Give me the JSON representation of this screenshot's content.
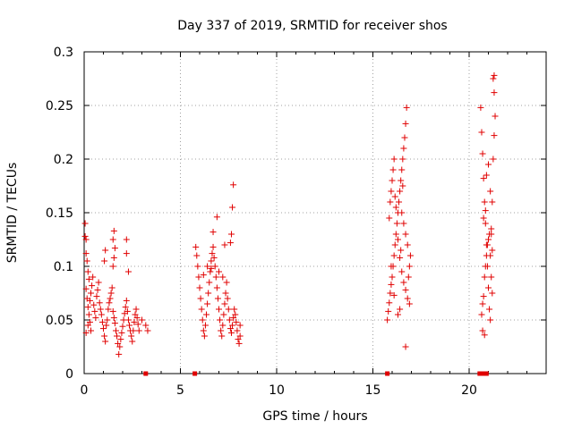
{
  "chart_data": {
    "type": "scatter",
    "title": "Day 337 of 2019, SRMTID for receiver shos",
    "xlabel": "GPS time / hours",
    "ylabel": "SRMTID / TECUs",
    "xlim": [
      0,
      24
    ],
    "ylim": [
      0,
      0.3
    ],
    "xticks": [
      0,
      5,
      10,
      15,
      20
    ],
    "xtick_labels": [
      "0",
      "5",
      "10",
      "15",
      "20"
    ],
    "yticks": [
      0,
      0.05,
      0.1,
      0.15,
      0.2,
      0.25,
      0.3
    ],
    "ytick_labels": [
      "0",
      "0.05",
      "0.1",
      "0.15",
      "0.2",
      "0.25",
      "0.3"
    ],
    "grid": true,
    "marker": "+",
    "color": "#e00000",
    "series": [
      {
        "name": "SRMTID",
        "points": [
          [
            0.05,
            0.14
          ],
          [
            0.05,
            0.128
          ],
          [
            0.1,
            0.125
          ],
          [
            0.1,
            0.112
          ],
          [
            0.15,
            0.105
          ],
          [
            0.2,
            0.095
          ],
          [
            0.25,
            0.088
          ],
          [
            0.1,
            0.079
          ],
          [
            0.15,
            0.07
          ],
          [
            0.2,
            0.062
          ],
          [
            0.25,
            0.055
          ],
          [
            0.3,
            0.048
          ],
          [
            0.35,
            0.04
          ],
          [
            0.1,
            0.038
          ],
          [
            0.2,
            0.045
          ],
          [
            0.3,
            0.068
          ],
          [
            0.35,
            0.075
          ],
          [
            0.4,
            0.082
          ],
          [
            0.45,
            0.09
          ],
          [
            0.5,
            0.064
          ],
          [
            0.55,
            0.058
          ],
          [
            0.6,
            0.052
          ],
          [
            0.65,
            0.072
          ],
          [
            0.7,
            0.078
          ],
          [
            0.75,
            0.085
          ],
          [
            0.8,
            0.066
          ],
          [
            0.85,
            0.06
          ],
          [
            0.9,
            0.055
          ],
          [
            0.95,
            0.048
          ],
          [
            1.0,
            0.042
          ],
          [
            1.05,
            0.035
          ],
          [
            1.1,
            0.03
          ],
          [
            1.15,
            0.045
          ],
          [
            1.2,
            0.05
          ],
          [
            1.25,
            0.06
          ],
          [
            1.3,
            0.066
          ],
          [
            1.35,
            0.07
          ],
          [
            1.4,
            0.075
          ],
          [
            1.45,
            0.08
          ],
          [
            1.5,
            0.058
          ],
          [
            1.55,
            0.052
          ],
          [
            1.6,
            0.047
          ],
          [
            1.65,
            0.04
          ],
          [
            1.7,
            0.035
          ],
          [
            1.75,
            0.028
          ],
          [
            1.8,
            0.018
          ],
          [
            1.85,
            0.025
          ],
          [
            1.9,
            0.032
          ],
          [
            1.95,
            0.038
          ],
          [
            2.0,
            0.044
          ],
          [
            2.05,
            0.05
          ],
          [
            2.1,
            0.056
          ],
          [
            2.15,
            0.062
          ],
          [
            2.2,
            0.068
          ],
          [
            2.25,
            0.058
          ],
          [
            2.3,
            0.05
          ],
          [
            2.35,
            0.045
          ],
          [
            2.4,
            0.04
          ],
          [
            2.45,
            0.035
          ],
          [
            2.5,
            0.03
          ],
          [
            2.55,
            0.04
          ],
          [
            2.6,
            0.048
          ],
          [
            2.65,
            0.055
          ],
          [
            2.7,
            0.06
          ],
          [
            2.75,
            0.052
          ],
          [
            2.8,
            0.046
          ],
          [
            2.85,
            0.04
          ],
          [
            3.0,
            0.05
          ],
          [
            3.2,
            0.045
          ],
          [
            3.3,
            0.04
          ],
          [
            1.5,
            0.1
          ],
          [
            1.55,
            0.108
          ],
          [
            1.6,
            0.117
          ],
          [
            1.5,
            0.125
          ],
          [
            1.55,
            0.133
          ],
          [
            2.2,
            0.125
          ],
          [
            2.2,
            0.112
          ],
          [
            2.3,
            0.095
          ],
          [
            1.1,
            0.115
          ],
          [
            1.05,
            0.105
          ],
          [
            5.8,
            0.118
          ],
          [
            5.85,
            0.11
          ],
          [
            5.9,
            0.1
          ],
          [
            5.95,
            0.09
          ],
          [
            6.0,
            0.08
          ],
          [
            6.05,
            0.07
          ],
          [
            6.1,
            0.06
          ],
          [
            6.15,
            0.05
          ],
          [
            6.2,
            0.04
          ],
          [
            6.25,
            0.035
          ],
          [
            6.3,
            0.045
          ],
          [
            6.35,
            0.055
          ],
          [
            6.4,
            0.065
          ],
          [
            6.45,
            0.075
          ],
          [
            6.5,
            0.085
          ],
          [
            6.55,
            0.095
          ],
          [
            6.6,
            0.105
          ],
          [
            6.65,
            0.112
          ],
          [
            6.7,
            0.118
          ],
          [
            6.75,
            0.108
          ],
          [
            6.8,
            0.1
          ],
          [
            6.85,
            0.09
          ],
          [
            6.9,
            0.08
          ],
          [
            6.95,
            0.07
          ],
          [
            7.0,
            0.06
          ],
          [
            7.05,
            0.05
          ],
          [
            7.1,
            0.04
          ],
          [
            7.15,
            0.035
          ],
          [
            7.2,
            0.045
          ],
          [
            7.25,
            0.055
          ],
          [
            7.3,
            0.065
          ],
          [
            7.35,
            0.075
          ],
          [
            7.4,
            0.085
          ],
          [
            7.45,
            0.07
          ],
          [
            7.5,
            0.06
          ],
          [
            7.55,
            0.05
          ],
          [
            7.6,
            0.042
          ],
          [
            7.65,
            0.038
          ],
          [
            7.7,
            0.045
          ],
          [
            7.75,
            0.052
          ],
          [
            7.8,
            0.06
          ],
          [
            7.85,
            0.055
          ],
          [
            7.9,
            0.048
          ],
          [
            7.95,
            0.04
          ],
          [
            8.0,
            0.032
          ],
          [
            8.05,
            0.028
          ],
          [
            8.1,
            0.035
          ],
          [
            8.1,
            0.045
          ],
          [
            6.9,
            0.146
          ],
          [
            6.7,
            0.132
          ],
          [
            7.3,
            0.12
          ],
          [
            7.6,
            0.122
          ],
          [
            7.65,
            0.13
          ],
          [
            7.7,
            0.155
          ],
          [
            7.75,
            0.176
          ],
          [
            6.2,
            0.092
          ],
          [
            6.4,
            0.1
          ],
          [
            6.6,
            0.098
          ],
          [
            7.0,
            0.095
          ],
          [
            7.2,
            0.09
          ],
          [
            15.75,
            0.05
          ],
          [
            15.8,
            0.058
          ],
          [
            15.85,
            0.066
          ],
          [
            15.9,
            0.075
          ],
          [
            15.95,
            0.083
          ],
          [
            16.0,
            0.09
          ],
          [
            16.05,
            0.1
          ],
          [
            16.1,
            0.11
          ],
          [
            16.15,
            0.12
          ],
          [
            16.2,
            0.13
          ],
          [
            16.25,
            0.14
          ],
          [
            16.3,
            0.15
          ],
          [
            16.35,
            0.16
          ],
          [
            16.4,
            0.17
          ],
          [
            16.45,
            0.18
          ],
          [
            16.5,
            0.19
          ],
          [
            16.55,
            0.2
          ],
          [
            16.6,
            0.21
          ],
          [
            16.65,
            0.22
          ],
          [
            16.7,
            0.233
          ],
          [
            16.75,
            0.248
          ],
          [
            15.85,
            0.145
          ],
          [
            15.9,
            0.16
          ],
          [
            15.95,
            0.17
          ],
          [
            16.0,
            0.18
          ],
          [
            16.05,
            0.19
          ],
          [
            16.1,
            0.2
          ],
          [
            16.15,
            0.165
          ],
          [
            16.2,
            0.155
          ],
          [
            16.3,
            0.125
          ],
          [
            16.4,
            0.108
          ],
          [
            16.5,
            0.095
          ],
          [
            16.6,
            0.085
          ],
          [
            16.7,
            0.078
          ],
          [
            16.8,
            0.07
          ],
          [
            16.85,
            0.09
          ],
          [
            16.9,
            0.1
          ],
          [
            16.95,
            0.11
          ],
          [
            16.8,
            0.12
          ],
          [
            16.7,
            0.13
          ],
          [
            16.6,
            0.14
          ],
          [
            16.5,
            0.15
          ],
          [
            16.4,
            0.06
          ],
          [
            16.3,
            0.055
          ],
          [
            16.7,
            0.025
          ],
          [
            16.9,
            0.065
          ],
          [
            16.1,
            0.073
          ],
          [
            15.95,
            0.1
          ],
          [
            16.45,
            0.115
          ],
          [
            16.55,
            0.175
          ],
          [
            20.6,
            0.248
          ],
          [
            20.65,
            0.225
          ],
          [
            20.7,
            0.205
          ],
          [
            20.75,
            0.182
          ],
          [
            20.8,
            0.16
          ],
          [
            20.85,
            0.14
          ],
          [
            20.9,
            0.12
          ],
          [
            20.95,
            0.1
          ],
          [
            21.0,
            0.08
          ],
          [
            21.05,
            0.06
          ],
          [
            21.1,
            0.05
          ],
          [
            21.15,
            0.13
          ],
          [
            21.2,
            0.16
          ],
          [
            21.25,
            0.2
          ],
          [
            21.3,
            0.222
          ],
          [
            21.35,
            0.24
          ],
          [
            21.3,
            0.262
          ],
          [
            21.25,
            0.275
          ],
          [
            21.3,
            0.278
          ],
          [
            20.65,
            0.055
          ],
          [
            20.7,
            0.065
          ],
          [
            20.75,
            0.072
          ],
          [
            20.8,
            0.09
          ],
          [
            20.85,
            0.1
          ],
          [
            20.9,
            0.11
          ],
          [
            20.95,
            0.12
          ],
          [
            21.0,
            0.125
          ],
          [
            21.05,
            0.13
          ],
          [
            21.1,
            0.11
          ],
          [
            21.15,
            0.09
          ],
          [
            21.2,
            0.075
          ],
          [
            20.7,
            0.04
          ],
          [
            20.8,
            0.036
          ],
          [
            20.9,
            0.185
          ],
          [
            21.0,
            0.195
          ],
          [
            21.1,
            0.17
          ],
          [
            20.75,
            0.145
          ],
          [
            20.85,
            0.152
          ],
          [
            21.2,
            0.115
          ],
          [
            21.15,
            0.135
          ]
        ]
      }
    ],
    "zero_markers_x": [
      3.2,
      5.75,
      15.75,
      20.55,
      20.75,
      20.9
    ]
  }
}
